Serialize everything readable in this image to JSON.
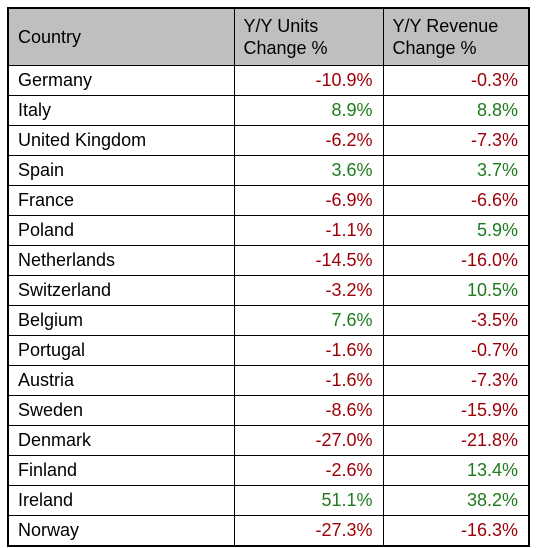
{
  "table": {
    "headers": {
      "country": "Country",
      "units_line1": "Y/Y Units",
      "units_line2": "Change %",
      "revenue_line1": "Y/Y Revenue",
      "revenue_line2": "Change %"
    }
  },
  "colors": {
    "header_background": "#bfbfbf",
    "negative": "#9c0006",
    "positive": "#1e7b1e",
    "border": "#000000"
  },
  "chart_data": {
    "type": "table",
    "columns": [
      "Country",
      "Y/Y Units Change %",
      "Y/Y Revenue Change %"
    ],
    "rows": [
      {
        "country": "Germany",
        "units_change_pct": -10.9,
        "revenue_change_pct": -0.3,
        "units_label": "-10.9%",
        "revenue_label": "-0.3%"
      },
      {
        "country": "Italy",
        "units_change_pct": 8.9,
        "revenue_change_pct": 8.8,
        "units_label": "8.9%",
        "revenue_label": "8.8%"
      },
      {
        "country": "United Kingdom",
        "units_change_pct": -6.2,
        "revenue_change_pct": -7.3,
        "units_label": "-6.2%",
        "revenue_label": "-7.3%"
      },
      {
        "country": "Spain",
        "units_change_pct": 3.6,
        "revenue_change_pct": 3.7,
        "units_label": "3.6%",
        "revenue_label": "3.7%"
      },
      {
        "country": "France",
        "units_change_pct": -6.9,
        "revenue_change_pct": -6.6,
        "units_label": "-6.9%",
        "revenue_label": "-6.6%"
      },
      {
        "country": "Poland",
        "units_change_pct": -1.1,
        "revenue_change_pct": 5.9,
        "units_label": "-1.1%",
        "revenue_label": "5.9%"
      },
      {
        "country": "Netherlands",
        "units_change_pct": -14.5,
        "revenue_change_pct": -16.0,
        "units_label": "-14.5%",
        "revenue_label": "-16.0%"
      },
      {
        "country": "Switzerland",
        "units_change_pct": -3.2,
        "revenue_change_pct": 10.5,
        "units_label": "-3.2%",
        "revenue_label": "10.5%"
      },
      {
        "country": "Belgium",
        "units_change_pct": 7.6,
        "revenue_change_pct": -3.5,
        "units_label": "7.6%",
        "revenue_label": "-3.5%"
      },
      {
        "country": "Portugal",
        "units_change_pct": -1.6,
        "revenue_change_pct": -0.7,
        "units_label": "-1.6%",
        "revenue_label": "-0.7%"
      },
      {
        "country": "Austria",
        "units_change_pct": -1.6,
        "revenue_change_pct": -7.3,
        "units_label": "-1.6%",
        "revenue_label": "-7.3%"
      },
      {
        "country": "Sweden",
        "units_change_pct": -8.6,
        "revenue_change_pct": -15.9,
        "units_label": "-8.6%",
        "revenue_label": "-15.9%"
      },
      {
        "country": "Denmark",
        "units_change_pct": -27.0,
        "revenue_change_pct": -21.8,
        "units_label": "-27.0%",
        "revenue_label": "-21.8%"
      },
      {
        "country": "Finland",
        "units_change_pct": -2.6,
        "revenue_change_pct": 13.4,
        "units_label": "-2.6%",
        "revenue_label": "13.4%"
      },
      {
        "country": "Ireland",
        "units_change_pct": 51.1,
        "revenue_change_pct": 38.2,
        "units_label": "51.1%",
        "revenue_label": "38.2%"
      },
      {
        "country": "Norway",
        "units_change_pct": -27.3,
        "revenue_change_pct": -16.3,
        "units_label": "-27.3%",
        "revenue_label": "-16.3%"
      }
    ]
  }
}
